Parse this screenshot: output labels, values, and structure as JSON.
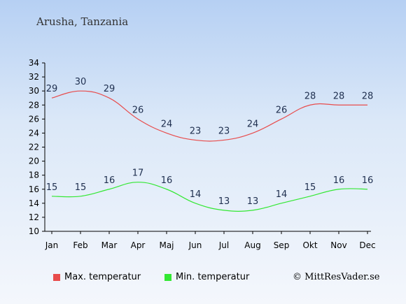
{
  "header": {
    "location": "Arusha, Tanzania"
  },
  "footer": {
    "copyright": "© MittResVader.se"
  },
  "legend": [
    {
      "label": "Max. temperatur",
      "color": "#e84c4c"
    },
    {
      "label": "Min. temperatur",
      "color": "#33e833"
    }
  ],
  "chart_data": {
    "type": "line",
    "title": "Arusha, Tanzania",
    "categories": [
      "Jan",
      "Feb",
      "Mar",
      "Apr",
      "Maj",
      "Jun",
      "Jul",
      "Aug",
      "Sep",
      "Okt",
      "Nov",
      "Dec"
    ],
    "yticks": [
      10,
      12,
      14,
      16,
      18,
      20,
      22,
      24,
      26,
      28,
      30,
      32,
      34
    ],
    "ylim": [
      10,
      34
    ],
    "grid": false,
    "legend_position": "bottom",
    "series": [
      {
        "name": "Max. temperatur",
        "color": "#e84c4c",
        "values": [
          29,
          30,
          29,
          26,
          24,
          23,
          23,
          24,
          26,
          28,
          28,
          28
        ]
      },
      {
        "name": "Min. temperatur",
        "color": "#33e833",
        "values": [
          15,
          15,
          16,
          17,
          16,
          14,
          13,
          13,
          14,
          15,
          16,
          16
        ]
      }
    ]
  }
}
